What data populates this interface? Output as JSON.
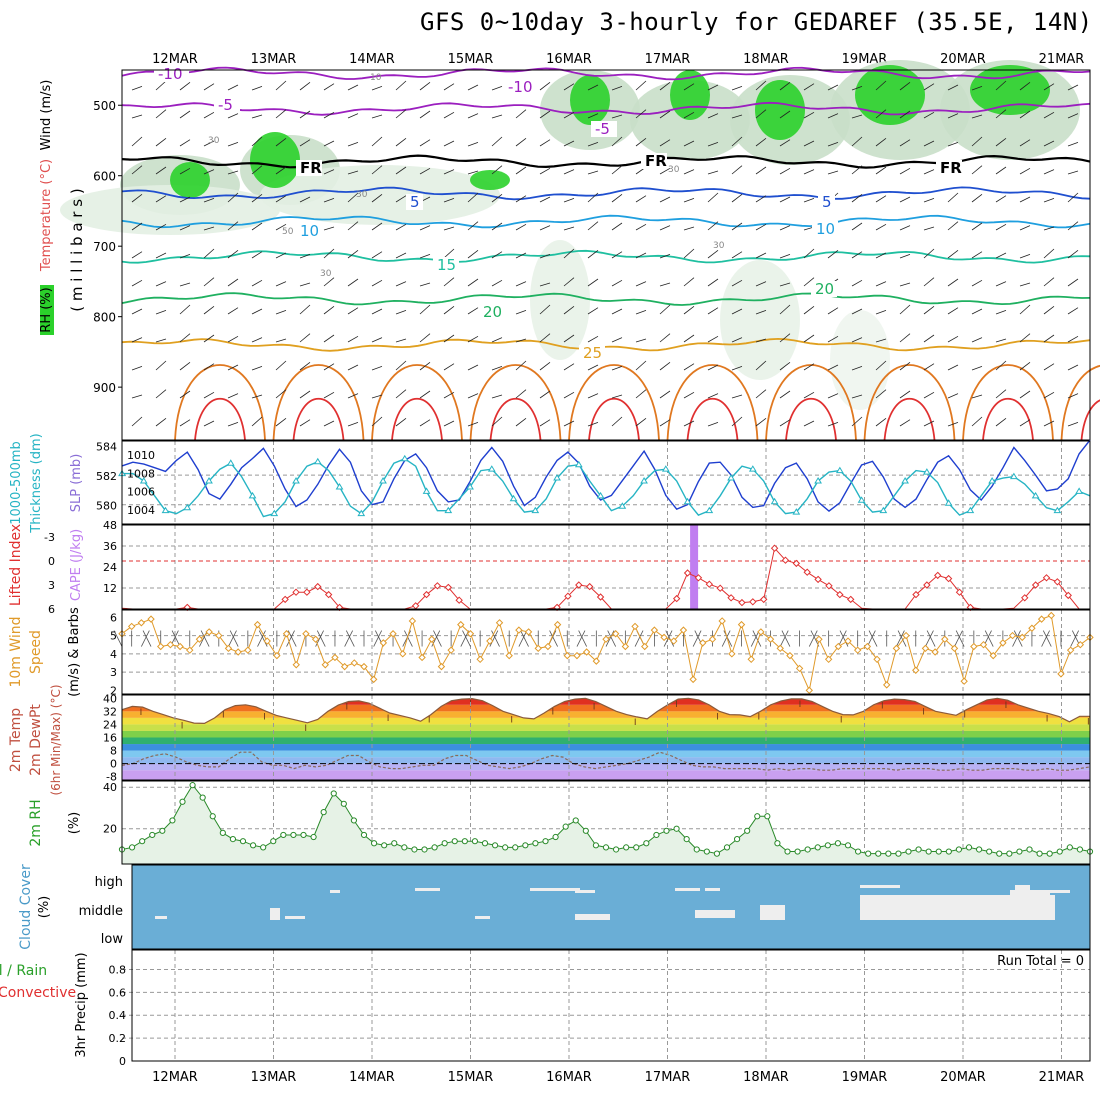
{
  "title": "GFS 0~10day 3-hourly for GEDAREF (35.5E, 14N)",
  "dates": [
    "12MAR",
    "13MAR",
    "14MAR",
    "15MAR",
    "16MAR",
    "17MAR",
    "18MAR",
    "19MAR",
    "20MAR",
    "21MAR"
  ],
  "run_total": "Run Total = 0",
  "colors": {
    "grid": "#999999",
    "rh_green": "#2bd12b",
    "slp": "#1f3fcf",
    "thick": "#26b4c4",
    "li": "#e03030",
    "cape": "#c07ef0",
    "wind": "#e09a2a",
    "cloud": "#6aaed6"
  },
  "chart_data": [
    {
      "type": "heatmap",
      "name": "upper-air",
      "ylabel": "(millibars)",
      "left_labels": [
        "RH (%)",
        "Temperature (°C)",
        "Wind (m/s)"
      ],
      "y_ticks": [
        "500",
        "600",
        "700",
        "800",
        "900"
      ],
      "ylim": [
        975,
        450
      ],
      "isotherm_labels": [
        "-10",
        "-10",
        "-5",
        "-5",
        "FR",
        "FR",
        "FR",
        "5",
        "5",
        "10",
        "10",
        "15",
        "20",
        "20",
        "25"
      ],
      "rh_labels": [
        "10",
        "30",
        "30",
        "50",
        "30",
        "30",
        "30"
      ],
      "isotherms": [
        {
          "label": "-10",
          "level": 455,
          "color": "#9b1fbf"
        },
        {
          "label": "-5",
          "level": 505,
          "color": "#9b1fbf"
        },
        {
          "label": "FR",
          "level": 580,
          "color": "#000000"
        },
        {
          "label": "5",
          "level": 625,
          "color": "#1f4fcf"
        },
        {
          "label": "10",
          "level": 665,
          "color": "#1f9fdf"
        },
        {
          "label": "15",
          "level": 715,
          "color": "#1fbfa0"
        },
        {
          "label": "20",
          "level": 775,
          "color": "#1fb060"
        },
        {
          "label": "25",
          "level": 840,
          "color": "#e0a020"
        }
      ]
    },
    {
      "type": "line",
      "name": "slp-thickness",
      "left_labels": [
        "1000-500mb",
        "Thickness (dm)",
        "SLP (mb)"
      ],
      "left_ticks": [
        "584",
        "582",
        "580"
      ],
      "right_ticks": [
        "1010",
        "1008",
        "1006",
        "1004"
      ],
      "series": [
        {
          "name": "SLP (mb)",
          "axis": "right",
          "values": [
            1008.8,
            1009.2,
            1009,
            1008.6,
            1008.2,
            1009.4,
            1010.3,
            1008.4,
            1005.8,
            1005.2,
            1006.8,
            1008.6,
            1009.6,
            1010.7,
            1008.8,
            1006.3,
            1004.4,
            1005.1,
            1006.8,
            1008.9,
            1010.6,
            1009.2,
            1006.1,
            1004.6,
            1004.9,
            1007.4,
            1009.4,
            1010.1,
            1008.6,
            1006.1,
            1004.9,
            1005.1,
            1007.1,
            1009.4,
            1010.8,
            1009.3,
            1006.6,
            1004.5,
            1005.4,
            1007.6,
            1009.4,
            1010.3,
            1009.1,
            1006.6,
            1005.1,
            1005.6,
            1007.2,
            1008.8,
            1010.4,
            1008.4,
            1005.6,
            1004.1,
            1004.6,
            1007.1,
            1009.1,
            1009.2,
            1007.8,
            1005.4,
            1004.3,
            1004.5,
            1006.9,
            1008.6,
            1009.1,
            1007.4,
            1004.9,
            1003.9,
            1004.8,
            1006.9,
            1008.9,
            1009.3,
            1007.6,
            1005.2,
            1004.3,
            1005.2,
            1007.3,
            1009.2,
            1009.9,
            1008.4,
            1006.2,
            1005.1,
            1006.6,
            1008.6,
            1010.8,
            1009.4,
            1007.8,
            1006.1,
            1006.3,
            1007.4,
            1010.1,
            1011.6
          ]
        },
        {
          "name": "1000-500mb Thickness (dm)",
          "axis": "left",
          "values": [
            582.1,
            582.1,
            581.6,
            580.6,
            579.6,
            579.4,
            579.8,
            580.6,
            581.6,
            582.4,
            582.8,
            581.9,
            580.6,
            579.2,
            579.4,
            580.2,
            581.6,
            582.6,
            582.9,
            582.3,
            581.2,
            579.9,
            579.4,
            580.2,
            581.6,
            582.8,
            583.1,
            582.6,
            580.9,
            579.6,
            579.6,
            580.4,
            581.2,
            582.3,
            582.4,
            581.6,
            580.4,
            579.5,
            579.6,
            580.4,
            581.8,
            582.6,
            582.7,
            581.6,
            580.6,
            579.6,
            579.9,
            580.6,
            581.6,
            582.3,
            582.4,
            581.6,
            580.2,
            579.3,
            579.6,
            580.6,
            581.8,
            582.6,
            582.4,
            581.6,
            580.2,
            579.4,
            579.5,
            580.4,
            581.6,
            582.2,
            582.3,
            581.6,
            580.3,
            579.5,
            579.6,
            580.6,
            581.6,
            582.3,
            582.2,
            581.5,
            580.1,
            579.3,
            579.6,
            580.6,
            581.6,
            581.8,
            581.9,
            581.4,
            580.6,
            579.8,
            579.6,
            580.2,
            580.9,
            580.6
          ]
        }
      ]
    },
    {
      "type": "line",
      "name": "lifted-index-cape",
      "left_labels": [
        "Lifted Index",
        "CAPE (J/kg)"
      ],
      "li_ticks": [
        "-3",
        "0",
        "3",
        "6"
      ],
      "cape_ticks": [
        "48",
        "36",
        "24",
        "12"
      ],
      "series": [
        {
          "name": "Lifted Index",
          "values": [
            5.9,
            6.3,
            6.5,
            6.4,
            6.3,
            6.6,
            5.8,
            6.5,
            6.2,
            6.5,
            6.5,
            6.3,
            6.3,
            6.6,
            6.2,
            4.8,
            3.9,
            3.9,
            3.2,
            4.2,
            5.8,
            6.3,
            6.5,
            6.2,
            6.4,
            6.2,
            6.6,
            5.6,
            4.2,
            3.1,
            3.3,
            4.9,
            6.2,
            6.5,
            6.3,
            6.4,
            6.2,
            6.1,
            6.5,
            6.4,
            5.8,
            4.4,
            3.0,
            3.2,
            4.5,
            6.3,
            6.0,
            6.5,
            6.4,
            6.3,
            6.6,
            4.7,
            1.5,
            2.1,
            2.9,
            3.4,
            4.6,
            5.2,
            5.1,
            4.8,
            -1.6,
            -0.1,
            0.3,
            1.4,
            2.3,
            3.1,
            4.2,
            4.8,
            5.9,
            6.3,
            6.1,
            6.5,
            6.5,
            4.2,
            3.0,
            1.8,
            2.2,
            3.9,
            5.8,
            6.4,
            6.2,
            6.4,
            5.9,
            4.6,
            3.0,
            2.1,
            2.6,
            4.3,
            6.2,
            6.5
          ]
        },
        {
          "name": "CAPE (J/kg)",
          "values": [
            {
              "day": 5.27,
              "value": 48
            }
          ]
        }
      ]
    },
    {
      "type": "line",
      "name": "10m-wind",
      "left_labels": [
        "10m Wind",
        "Speed",
        "(m/s) & Barbs"
      ],
      "y_ticks": [
        "6",
        "5",
        "4",
        "3",
        "2"
      ],
      "series": [
        {
          "name": "10m Wind Speed (m/s)",
          "values": [
            5.1,
            5.5,
            5.7,
            5.9,
            4.4,
            4.5,
            4.4,
            4.2,
            4.8,
            5.2,
            5.0,
            4.3,
            4.1,
            4.2,
            5.6,
            4.7,
            3.9,
            5.1,
            3.4,
            5.1,
            4.8,
            3.4,
            3.8,
            3.3,
            3.5,
            3.3,
            2.6,
            4.6,
            5.1,
            4.0,
            5.8,
            3.8,
            4.8,
            3.3,
            4.2,
            5.6,
            5.1,
            3.7,
            4.7,
            5.7,
            3.9,
            5.3,
            5.2,
            4.3,
            4.4,
            5.6,
            3.9,
            3.9,
            4.1,
            3.6,
            4.8,
            5.1,
            4.4,
            5.5,
            4.4,
            5.3,
            4.9,
            4.7,
            5.3,
            2.6,
            4.6,
            4.8,
            5.8,
            4.0,
            5.6,
            3.7,
            5.2,
            4.8,
            4.3,
            3.9,
            3.2,
            2.0,
            4.8,
            3.7,
            4.4,
            4.7,
            4.2,
            4.4,
            3.7,
            2.3,
            4.3,
            5.0,
            3.1,
            4.3,
            4.1,
            4.8,
            4.3,
            2.5,
            4.4,
            4.5,
            3.9,
            4.6,
            5.0,
            4.9,
            5.4,
            5.9,
            6.1,
            2.9,
            4.2,
            4.5,
            4.9
          ]
        }
      ]
    },
    {
      "type": "area",
      "name": "2m-temp-dewpoint",
      "left_labels": [
        "2m Temp",
        "2m DewPt",
        "(6hr Min/Max) (°C)"
      ],
      "y_ticks": [
        "40",
        "32",
        "24",
        "16",
        "8",
        "0",
        "-8"
      ],
      "series": [
        {
          "name": "2m Temp",
          "values": [
            33,
            35,
            34.6,
            32,
            30,
            28,
            26.5,
            24.8,
            24.6,
            28,
            33,
            35.5,
            36,
            34.8,
            32,
            29.5,
            28,
            26.5,
            25,
            27,
            32,
            35.8,
            38,
            38.4,
            37,
            34,
            31,
            29.5,
            28,
            26,
            30,
            35,
            38.5,
            39.5,
            39.8,
            38.5,
            35.5,
            32,
            30,
            28,
            27.4,
            31,
            35,
            38,
            39.5,
            40,
            38,
            35,
            32,
            30,
            28.6,
            27.4,
            32,
            36,
            39.5,
            40,
            39,
            36,
            32,
            30,
            29.8,
            28.8,
            32,
            36,
            38.4,
            39.6,
            39.6,
            38,
            35,
            32,
            30,
            29.8,
            32,
            36,
            38.5,
            39.5,
            39.2,
            38,
            35,
            32,
            30.8,
            29.6,
            33,
            36,
            39,
            40,
            38.8,
            36,
            34,
            32,
            30.6,
            28.8,
            25.6,
            29,
            29
          ]
        },
        {
          "name": "2m DewPt",
          "values": [
            -1,
            0,
            3,
            5,
            6,
            4,
            1,
            -1,
            -2,
            -2,
            3,
            7,
            7,
            1,
            -1,
            -1,
            -3,
            -1,
            -2,
            -1,
            2,
            5,
            5,
            1,
            -2,
            -3,
            -3,
            -2,
            -1,
            -1,
            3,
            5,
            5,
            2,
            -1,
            -2,
            -3,
            -2,
            0,
            3,
            5,
            4,
            0,
            -2,
            -3,
            -2,
            -1,
            0,
            2,
            4,
            7,
            5,
            2,
            -1,
            -2,
            -2,
            -3,
            -3,
            -3,
            -3,
            -4,
            -3,
            -4,
            -3,
            -3,
            -4,
            -4,
            -3,
            -3,
            -3,
            -3,
            -3,
            -4,
            -3,
            -3,
            -3,
            -4,
            -4,
            -3,
            -4,
            -4,
            -3,
            -3,
            -3,
            -4,
            -4,
            -3,
            -4,
            -4,
            -3,
            -2
          ]
        }
      ]
    },
    {
      "type": "area",
      "name": "2m-rh",
      "left_labels": [
        "2m RH",
        "(%)"
      ],
      "y_ticks": [
        "40",
        "20"
      ],
      "series": [
        {
          "name": "2m RH (%)",
          "values": [
            10,
            11,
            14,
            17,
            19,
            24,
            33,
            41,
            35,
            26,
            18,
            15,
            14,
            12,
            11,
            14,
            17,
            17,
            17,
            16,
            28,
            37,
            32,
            24,
            17,
            13,
            12,
            13,
            11,
            10,
            10,
            11,
            13,
            14,
            14,
            14,
            13,
            12,
            11,
            11,
            12,
            13,
            14,
            16,
            21,
            24,
            19,
            12,
            11,
            10,
            11,
            11,
            13,
            17,
            19,
            20,
            15,
            10,
            9,
            8,
            11,
            15,
            19,
            26,
            26,
            13,
            9,
            9,
            10,
            11,
            12,
            13,
            12,
            9,
            8,
            8,
            8,
            8,
            9,
            10,
            9,
            9,
            9,
            10,
            11,
            10,
            9,
            8,
            8,
            9,
            10,
            8,
            8,
            9,
            11,
            10,
            9
          ]
        }
      ]
    },
    {
      "type": "bar",
      "name": "cloud-cover",
      "left_labels": [
        "Cloud Cover",
        "(%)"
      ],
      "y_ticks": [
        "high",
        "middle",
        "low"
      ]
    },
    {
      "type": "line",
      "name": "precip",
      "left_labels": [
        "Total / Rain",
        "Convective",
        "3hr Precip (mm)"
      ],
      "y_ticks": [
        "0.8",
        "0.6",
        "0.4",
        "0.2",
        "0"
      ],
      "ylim": [
        0,
        0.9
      ],
      "values": []
    }
  ]
}
